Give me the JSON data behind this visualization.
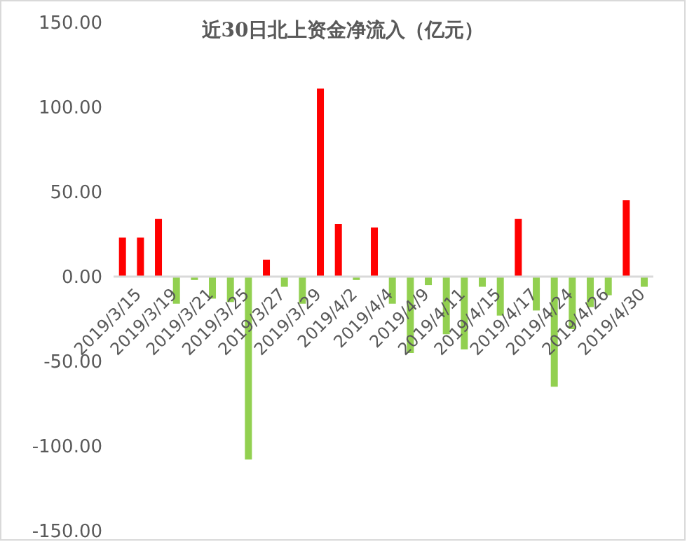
{
  "chart_data": {
    "type": "bar",
    "title": "近30日北上资金净流入（亿元）",
    "categories": [
      null,
      "2019/3/15",
      null,
      "2019/3/19",
      null,
      "2019/3/21",
      null,
      "2019/3/25",
      null,
      "2019/3/27",
      null,
      "2019/3/29",
      null,
      "2019/4/2",
      null,
      "2019/4/4",
      null,
      "2019/4/9",
      null,
      "2019/4/11",
      null,
      "2019/4/15",
      null,
      "2019/4/17",
      null,
      "2019/4/24",
      null,
      "2019/4/26",
      null,
      "2019/4/30"
    ],
    "values": [
      23,
      23,
      34,
      -16,
      -2,
      -13,
      -15,
      -108,
      10,
      -6,
      -16,
      111,
      31,
      -2,
      29,
      -16,
      -45,
      -5,
      -34,
      -43,
      -6,
      -23,
      34,
      -20,
      -65,
      -31,
      -18,
      -11,
      45,
      -6
    ],
    "colors": [
      "#ff0000",
      "#ff0000",
      "#ff0000",
      "#92d050",
      "#92d050",
      "#92d050",
      "#92d050",
      "#92d050",
      "#ff0000",
      "#92d050",
      "#92d050",
      "#ff0000",
      "#ff0000",
      "#92d050",
      "#ff0000",
      "#92d050",
      "#92d050",
      "#92d050",
      "#92d050",
      "#92d050",
      "#92d050",
      "#92d050",
      "#ff0000",
      "#92d050",
      "#92d050",
      "#92d050",
      "#92d050",
      "#92d050",
      "#ff0000",
      "#92d050"
    ],
    "ylim": [
      -150,
      150
    ],
    "yticks": [
      {
        "value": -150,
        "label": "-150.00"
      },
      {
        "value": -100,
        "label": "-100.00"
      },
      {
        "value": -50,
        "label": "-50.00"
      },
      {
        "value": 0,
        "label": "0.00"
      },
      {
        "value": 50,
        "label": "50.00"
      },
      {
        "value": 100,
        "label": "100.00"
      },
      {
        "value": 150,
        "label": "150.00"
      }
    ],
    "grid": false,
    "legend": false
  }
}
